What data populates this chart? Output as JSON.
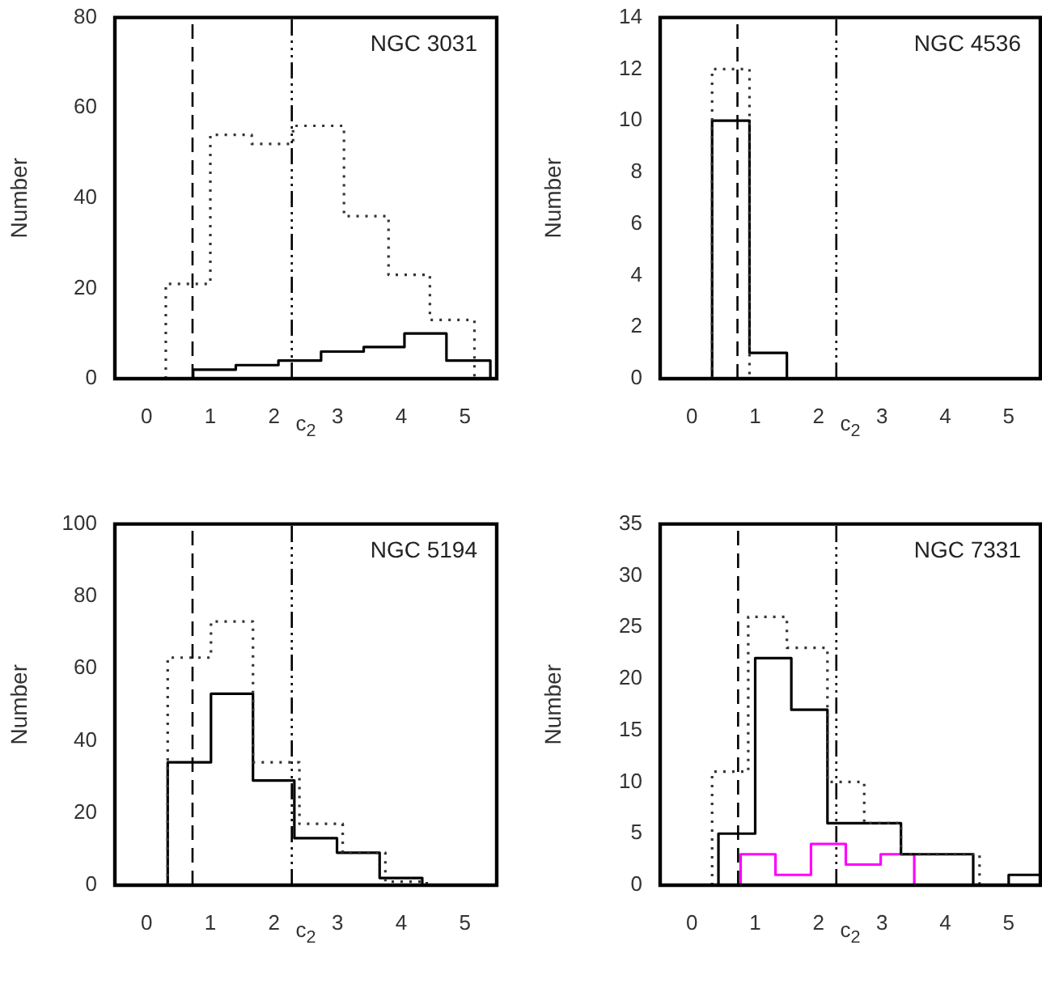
{
  "chart_data": [
    {
      "type": "histogram",
      "xlabel": "c$_{2}$",
      "ylabel": "Number",
      "annotations": [
        "NGC 3031"
      ],
      "xlim": [
        -0.5,
        5.5
      ],
      "xticks": [
        0,
        1,
        2,
        3,
        4,
        5
      ],
      "ylim": [
        0,
        80
      ],
      "yticks": [
        0,
        20,
        40,
        60,
        80
      ],
      "bins": [
        0.3,
        0.73,
        1.0,
        1.4,
        1.65,
        2.07,
        2.3,
        2.74,
        3.1,
        3.41,
        3.8,
        4.05,
        4.45,
        4.71,
        5.15,
        5.4
      ],
      "series": [
        {
          "color": "#333333",
          "line_style": "dotted",
          "values": [
            21,
            21,
            54,
            54,
            52,
            52,
            56,
            56,
            36,
            36,
            23,
            23,
            13,
            13,
            0
          ]
        },
        {
          "color": "#000000",
          "line_style": "solid",
          "values": [
            0,
            2,
            2,
            3,
            3,
            4,
            4,
            6,
            6,
            7,
            7,
            10,
            10,
            4,
            4
          ]
        }
      ],
      "ref_lines": [
        {
          "axis": "x",
          "value": 0.72,
          "line_style": "dashed"
        },
        {
          "axis": "x",
          "value": 2.28,
          "line_style": "dashdot"
        }
      ]
    },
    {
      "type": "histogram",
      "xlabel": "c$_{2}$",
      "ylabel": "Number",
      "annotations": [
        "NGC 4536"
      ],
      "xlim": [
        -0.5,
        5.5
      ],
      "xticks": [
        0,
        1,
        2,
        3,
        4,
        5
      ],
      "ylim": [
        0,
        14
      ],
      "yticks": [
        0,
        2,
        4,
        6,
        8,
        10,
        12,
        14
      ],
      "bins": [
        0.32,
        0.91,
        1.5
      ],
      "series": [
        {
          "color": "#333333",
          "line_style": "dotted",
          "values": [
            12,
            0
          ]
        },
        {
          "color": "#000000",
          "line_style": "solid",
          "values": [
            10,
            1
          ]
        }
      ],
      "ref_lines": [
        {
          "axis": "x",
          "value": 0.72,
          "line_style": "dashed"
        },
        {
          "axis": "x",
          "value": 2.28,
          "line_style": "dashdot"
        }
      ]
    },
    {
      "type": "histogram",
      "xlabel": "c$_{2}$",
      "ylabel": "Number",
      "annotations": [
        "NGC 5194"
      ],
      "xlim": [
        -0.5,
        5.5
      ],
      "xticks": [
        0,
        1,
        2,
        3,
        4,
        5
      ],
      "ylim": [
        0,
        100
      ],
      "yticks": [
        0,
        20,
        40,
        60,
        80,
        100
      ],
      "bins": [
        0.33,
        1.01,
        1.67,
        2.32,
        2.4,
        2.99,
        3.08,
        3.66,
        3.75,
        4.33,
        4.4
      ],
      "series": [
        {
          "color": "#333333",
          "line_style": "dotted",
          "values": [
            63,
            73,
            34,
            34,
            17,
            17,
            9,
            9,
            1,
            1
          ]
        },
        {
          "color": "#000000",
          "line_style": "solid",
          "values": [
            34,
            53,
            29,
            13,
            13,
            9,
            9,
            2,
            2,
            0
          ]
        }
      ],
      "ref_lines": [
        {
          "axis": "x",
          "value": 0.72,
          "line_style": "dashed"
        },
        {
          "axis": "x",
          "value": 2.28,
          "line_style": "dashdot"
        }
      ]
    },
    {
      "type": "histogram",
      "xlabel": "c$_{2}$",
      "ylabel": "Number",
      "annotations": [
        "NGC 7331"
      ],
      "xlim": [
        -0.5,
        5.5
      ],
      "xticks": [
        0,
        1,
        2,
        3,
        4,
        5
      ],
      "ylim": [
        0,
        35
      ],
      "yticks": [
        0,
        5,
        10,
        15,
        20,
        25,
        30,
        35
      ],
      "bins": [
        0.32,
        0.42,
        0.77,
        0.89,
        1.0,
        1.32,
        1.5,
        1.57,
        1.88,
        2.14,
        2.43,
        2.72,
        2.98,
        3.3,
        3.51,
        3.87,
        4.44,
        4.54,
        5.0,
        5.5
      ],
      "series": [
        {
          "color": "#333333",
          "line_style": "dotted",
          "values": [
            11,
            11,
            11,
            26,
            26,
            26,
            23,
            23,
            23,
            10,
            10,
            6,
            6,
            3,
            3,
            3,
            3,
            0,
            0
          ]
        },
        {
          "color": "#000000",
          "line_style": "solid",
          "values": [
            0,
            5,
            5,
            5,
            22,
            22,
            22,
            17,
            17,
            6,
            6,
            6,
            6,
            3,
            3,
            3,
            0,
            0,
            1
          ]
        },
        {
          "color": "#ff00ff",
          "line_style": "solid",
          "values": [
            0,
            0,
            3,
            3,
            3,
            1,
            1,
            1,
            4,
            4,
            2,
            2,
            3,
            3,
            0,
            0,
            0,
            0,
            0
          ]
        }
      ],
      "ref_lines": [
        {
          "axis": "x",
          "value": 0.73,
          "line_style": "dashed"
        },
        {
          "axis": "x",
          "value": 2.28,
          "line_style": "dashdot"
        }
      ]
    }
  ]
}
